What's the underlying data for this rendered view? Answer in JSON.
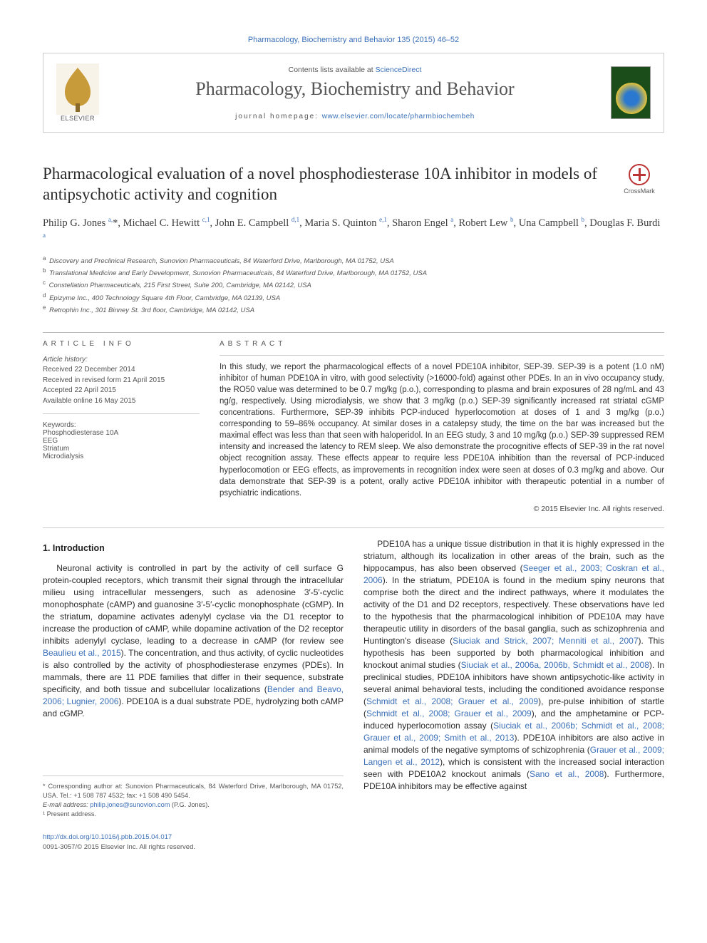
{
  "top_citation": "Pharmacology, Biochemistry and Behavior 135 (2015) 46–52",
  "header": {
    "contents_prefix": "Contents lists available at ",
    "contents_link": "ScienceDirect",
    "journal_name": "Pharmacology, Biochemistry and Behavior",
    "homepage_label": "journal homepage: ",
    "homepage_url": "www.elsevier.com/locate/pharmbiochembeh",
    "publisher_label": "ELSEVIER"
  },
  "crossmark_label": "CrossMark",
  "article": {
    "title": "Pharmacological evaluation of a novel phosphodiesterase 10A inhibitor in models of antipsychotic activity and cognition",
    "authors_html": "Philip G. Jones <sup class='aff'>a,</sup>*, Michael C. Hewitt <sup class='aff'>c,1</sup>, John E. Campbell <sup class='aff'>d,1</sup>, Maria S. Quinton <sup class='aff'>e,1</sup>, Sharon Engel <sup class='aff'>a</sup>, Robert Lew <sup class='aff'>b</sup>, Una Campbell <sup class='aff'>b</sup>, Douglas F. Burdi <sup class='aff'>a</sup>"
  },
  "affiliations": [
    "Discovery and Preclinical Research, Sunovion Pharmaceuticals, 84 Waterford Drive, Marlborough, MA 01752, USA",
    "Translational Medicine and Early Development, Sunovion Pharmaceuticals, 84 Waterford Drive, Marlborough, MA 01752, USA",
    "Constellation Pharmaceuticals, 215 First Street, Suite 200, Cambridge, MA 02142, USA",
    "Epizyme Inc., 400 Technology Square 4th Floor, Cambridge, MA 02139, USA",
    "Retrophin Inc., 301 Binney St. 3rd floor, Cambridge, MA 02142, USA"
  ],
  "aff_letters": [
    "a",
    "b",
    "c",
    "d",
    "e"
  ],
  "info": {
    "heading": "article info",
    "history_label": "Article history:",
    "history": [
      "Received 22 December 2014",
      "Received in revised form 21 April 2015",
      "Accepted 22 April 2015",
      "Available online 16 May 2015"
    ],
    "keywords_label": "Keywords:",
    "keywords": [
      "Phosphodiesterase 10A",
      "EEG",
      "Striatum",
      "Microdialysis"
    ]
  },
  "abstract": {
    "heading": "abstract",
    "text": "In this study, we report the pharmacological effects of a novel PDE10A inhibitor, SEP-39. SEP-39 is a potent (1.0 nM) inhibitor of human PDE10A in vitro, with good selectivity (>16000-fold) against other PDEs. In an in vivo occupancy study, the RO50 value was determined to be 0.7 mg/kg (p.o.), corresponding to plasma and brain exposures of 28 ng/mL and 43 ng/g, respectively. Using microdialysis, we show that 3 mg/kg (p.o.) SEP-39 significantly increased rat striatal cGMP concentrations. Furthermore, SEP-39 inhibits PCP-induced hyperlocomotion at doses of 1 and 3 mg/kg (p.o.) corresponding to 59–86% occupancy. At similar doses in a catalepsy study, the time on the bar was increased but the maximal effect was less than that seen with haloperidol. In an EEG study, 3 and 10 mg/kg (p.o.) SEP-39 suppressed REM intensity and increased the latency to REM sleep. We also demonstrate the procognitive effects of SEP-39 in the rat novel object recognition assay. These effects appear to require less PDE10A inhibition than the reversal of PCP-induced hyperlocomotion or EEG effects, as improvements in recognition index were seen at doses of 0.3 mg/kg and above. Our data demonstrate that SEP-39 is a potent, orally active PDE10A inhibitor with therapeutic potential in a number of psychiatric indications.",
    "copyright": "© 2015 Elsevier Inc. All rights reserved."
  },
  "section1": {
    "heading": "1. Introduction",
    "p1_pre": "Neuronal activity is controlled in part by the activity of cell surface G protein-coupled receptors, which transmit their signal through the intracellular milieu using intracellular messengers, such as adenosine 3′-5′-cyclic monophosphate (cAMP) and guanosine 3′-5′-cyclic monophosphate (cGMP). In the striatum, dopamine activates adenylyl cyclase via the D1 receptor to increase the production of cAMP, while dopamine activation of the D2 receptor inhibits adenylyl cyclase, leading to a decrease in cAMP (for review see ",
    "p1_ref1": "Beaulieu et al., 2015",
    "p1_mid": "). The concentration, and thus activity, of cyclic nucleotides is also controlled by the activity of phosphodiesterase enzymes (PDEs). In mammals, there are 11 PDE families that differ in their sequence, substrate specificity, and both tissue and subcellular localizations (",
    "p1_ref2": "Bender and Beavo, 2006; Lugnier, 2006",
    "p1_post": "). PDE10A is a dual substrate PDE, hydrolyzing both cAMP and cGMP.",
    "p2_a": "PDE10A has a unique tissue distribution in that it is highly expressed in the striatum, although its localization in other areas of the brain, such as the hippocampus, has also been observed (",
    "p2_r1": "Seeger et al., 2003; Coskran et al., 2006",
    "p2_b": "). In the striatum, PDE10A is found in the medium spiny neurons that comprise both the direct and the indirect pathways, where it modulates the activity of the D1 and D2 receptors, respectively. These observations have led to the hypothesis that the pharmacological inhibition of PDE10A may have therapeutic utility in disorders of the basal ganglia, such as schizophrenia and Huntington's disease (",
    "p2_r2": "Siuciak and Strick, 2007; Menniti et al., 2007",
    "p2_c": "). This hypothesis has been supported by both pharmacological inhibition and knockout animal studies (",
    "p2_r3": "Siuciak et al., 2006a, 2006b, Schmidt et al., 2008",
    "p2_d": "). In preclinical studies, PDE10A inhibitors have shown antipsychotic-like activity in several animal behavioral tests, including the conditioned avoidance response (",
    "p2_r4": "Schmidt et al., 2008; Grauer et al., 2009",
    "p2_e": "), pre-pulse inhibition of startle (",
    "p2_r5": "Schmidt et al., 2008; Grauer et al., 2009",
    "p2_f": "), and the amphetamine or PCP-induced hyperlocomotion assay (",
    "p2_r6": "Siuciak et al., 2006b; Schmidt et al., 2008; Grauer et al., 2009; Smith et al., 2013",
    "p2_g": "). PDE10A inhibitors are also active in animal models of the negative symptoms of schizophrenia (",
    "p2_r7": "Grauer et al., 2009; Langen et al., 2012",
    "p2_h": "), which is consistent with the increased social interaction seen with PDE10A2 knockout animals (",
    "p2_r8": "Sano et al., 2008",
    "p2_i": "). Furthermore, PDE10A inhibitors may be effective against"
  },
  "footnotes": {
    "corr": "* Corresponding author at: Sunovion Pharmaceuticals, 84 Waterford Drive, Marlborough, MA 01752, USA. Tel.: +1 508 787 4532; fax: +1 508 490 5454.",
    "email_label": "E-mail address: ",
    "email": "philip.jones@sunovion.com",
    "email_suffix": " (P.G. Jones).",
    "present": "¹ Present address."
  },
  "bottom": {
    "doi": "http://dx.doi.org/10.1016/j.pbb.2015.04.017",
    "issn": "0091-3057/© 2015 Elsevier Inc. All rights reserved."
  },
  "colors": {
    "link": "#3a6fb7",
    "text": "#333333",
    "rule": "#bbbbbb"
  }
}
